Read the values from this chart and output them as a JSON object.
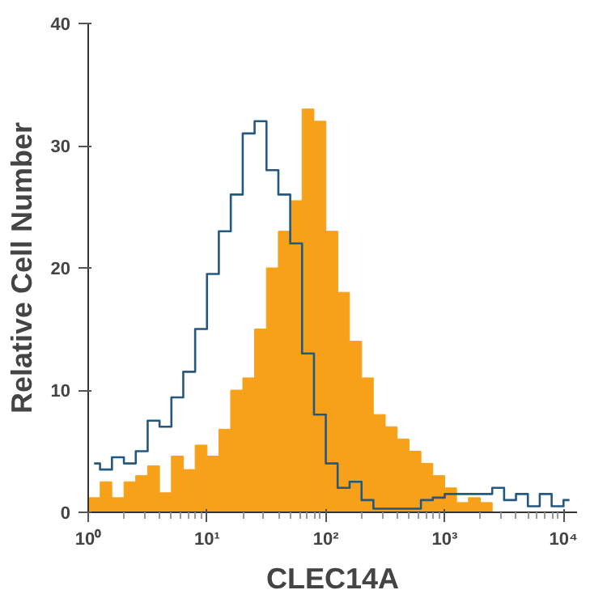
{
  "chart_data": {
    "type": "histogram",
    "xlabel": "CLEC14A",
    "ylabel": "Relative Cell Number",
    "log": "x",
    "grid": false,
    "xlim": [
      1,
      13000
    ],
    "ylim": [
      0,
      40
    ],
    "xticks": [
      {
        "value": 1,
        "label": "10⁰"
      },
      {
        "value": 10,
        "label": "10¹"
      },
      {
        "value": 100,
        "label": "10²"
      },
      {
        "value": 1000,
        "label": "10³"
      },
      {
        "value": 10000,
        "label": "10⁴"
      }
    ],
    "yticks": [
      0,
      10,
      20,
      30,
      40
    ],
    "bins": [
      1,
      1.26,
      1.58,
      2,
      2.51,
      3.16,
      3.98,
      5.01,
      6.31,
      7.94,
      10,
      12.6,
      15.8,
      20,
      25.1,
      31.6,
      39.8,
      50.1,
      63.1,
      79.4,
      100,
      126,
      158,
      200,
      251,
      316,
      398,
      501,
      631,
      794,
      1000,
      1259,
      1585,
      1995,
      2512,
      3162,
      3981,
      5012,
      6310,
      7943,
      10000,
      12589
    ],
    "series": [
      {
        "color": "#f7a11a",
        "values": [
          1.2,
          2.5,
          1.2,
          2.5,
          3,
          3.8,
          1.6,
          4.6,
          3.5,
          5.5,
          4.6,
          6.8,
          10,
          11,
          15,
          20,
          23,
          25.5,
          33,
          32,
          23,
          18,
          14,
          11,
          8,
          7,
          6,
          5,
          4,
          3,
          2,
          0.8,
          1.2,
          0.8,
          0,
          0,
          0,
          0,
          0,
          0,
          0
        ]
      },
      {
        "type": "step",
        "color": "#24587f",
        "x": [
          1.12,
          1.41,
          1.78,
          2.24,
          2.82,
          3.55,
          4.47,
          5.62,
          7.08,
          8.91,
          11.2,
          14.1,
          17.8,
          22.4,
          28.2,
          35.5,
          44.7,
          56.2,
          70.8,
          89.1,
          112,
          141,
          178,
          224,
          282,
          355,
          447,
          562,
          708,
          891,
          1122,
          1413,
          1778,
          2239,
          2818,
          3548,
          4467,
          5623,
          7079,
          8913,
          11220
        ],
        "values": [
          4,
          3.5,
          4.5,
          4,
          5,
          7.5,
          7,
          9.4,
          11.5,
          15,
          19.5,
          23,
          26,
          31,
          32,
          28,
          26,
          22,
          13,
          8,
          4,
          2,
          2.5,
          1,
          0.3,
          0.3,
          0.3,
          0.3,
          1,
          1.2,
          1.5,
          1.5,
          1.5,
          1.5,
          2,
          1,
          1.5,
          0.5,
          1.5,
          0.5,
          1
        ]
      }
    ]
  }
}
